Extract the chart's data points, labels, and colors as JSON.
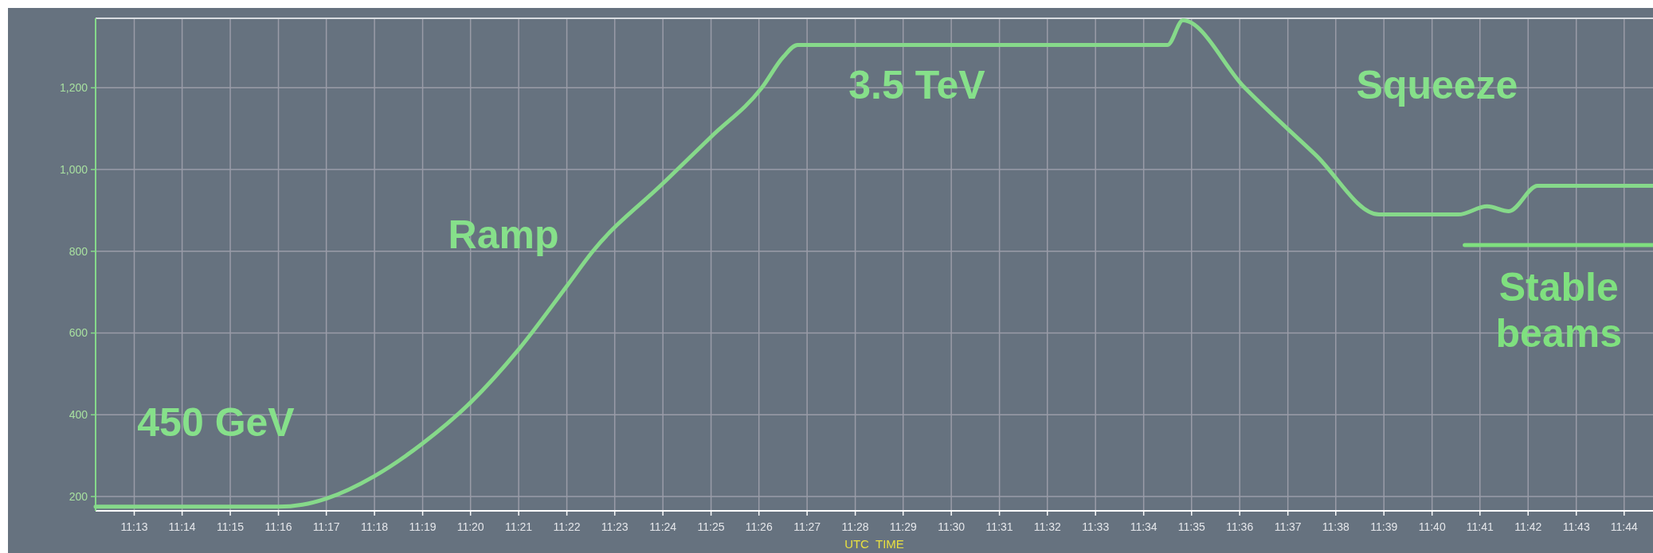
{
  "chart_data": {
    "type": "line",
    "xlabel": "UTC  TIME",
    "xlim": [
      11.2033,
      11.7433
    ],
    "ylim": [
      165,
      1370
    ],
    "grid": true,
    "line_style": "solid",
    "marker": "none",
    "xticks": [
      {
        "value": 11.2167,
        "label": "11:13"
      },
      {
        "value": 11.2333,
        "label": "11:14"
      },
      {
        "value": 11.25,
        "label": "11:15"
      },
      {
        "value": 11.2667,
        "label": "11:16"
      },
      {
        "value": 11.2833,
        "label": "11:17"
      },
      {
        "value": 11.3,
        "label": "11:18"
      },
      {
        "value": 11.3167,
        "label": "11:19"
      },
      {
        "value": 11.3333,
        "label": "11:20"
      },
      {
        "value": 11.35,
        "label": "11:21"
      },
      {
        "value": 11.3667,
        "label": "11:22"
      },
      {
        "value": 11.3833,
        "label": "11:23"
      },
      {
        "value": 11.4,
        "label": "11:24"
      },
      {
        "value": 11.4167,
        "label": "11:25"
      },
      {
        "value": 11.4333,
        "label": "11:26"
      },
      {
        "value": 11.45,
        "label": "11:27"
      },
      {
        "value": 11.4667,
        "label": "11:28"
      },
      {
        "value": 11.4833,
        "label": "11:29"
      },
      {
        "value": 11.5,
        "label": "11:30"
      },
      {
        "value": 11.5167,
        "label": "11:31"
      },
      {
        "value": 11.5333,
        "label": "11:32"
      },
      {
        "value": 11.55,
        "label": "11:33"
      },
      {
        "value": 11.5667,
        "label": "11:34"
      },
      {
        "value": 11.5833,
        "label": "11:35"
      },
      {
        "value": 11.6,
        "label": "11:36"
      },
      {
        "value": 11.6167,
        "label": "11:37"
      },
      {
        "value": 11.6333,
        "label": "11:38"
      },
      {
        "value": 11.65,
        "label": "11:39"
      },
      {
        "value": 11.6667,
        "label": "11:40"
      },
      {
        "value": 11.6833,
        "label": "11:41"
      },
      {
        "value": 11.7,
        "label": "11:42"
      },
      {
        "value": 11.7167,
        "label": "11:43"
      },
      {
        "value": 11.7333,
        "label": "11:44"
      }
    ],
    "yticks": [
      {
        "value": 200,
        "label": "200"
      },
      {
        "value": 400,
        "label": "400"
      },
      {
        "value": 600,
        "label": "600"
      },
      {
        "value": 800,
        "label": "800"
      },
      {
        "value": 1000,
        "label": "1,000"
      },
      {
        "value": 1200,
        "label": "1,200"
      }
    ],
    "series": [
      {
        "color": "#86d98a",
        "x": [
          11.2033,
          11.2667,
          11.275,
          11.2833,
          11.3,
          11.3167,
          11.3333,
          11.35,
          11.3667,
          11.3757,
          11.4,
          11.4167,
          11.4343,
          11.4417,
          11.4467,
          11.575,
          11.5803,
          11.6015,
          11.6263,
          11.6483,
          11.6758,
          11.6858,
          11.6933,
          11.7033,
          11.7433
        ],
        "values": [
          175,
          175,
          180,
          195,
          250,
          330,
          430,
          560,
          715,
          800,
          966,
          1080,
          1200,
          1275,
          1305,
          1305,
          1365,
          1202,
          1036,
          890,
          890,
          910,
          898,
          960,
          960
        ]
      },
      {
        "name": "Stable beams",
        "color": "#7fe07f",
        "x": [
          11.678,
          11.7433
        ],
        "values": [
          815,
          815
        ]
      }
    ],
    "annotations": [
      "450 GeV",
      "Ramp",
      "3.5 TeV",
      "Squeeze"
    ]
  }
}
